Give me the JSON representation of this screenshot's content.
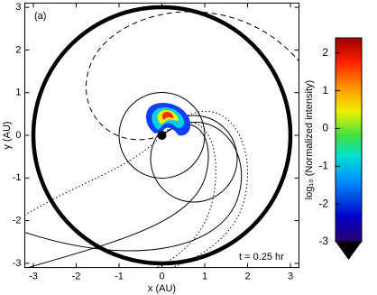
{
  "chart_data": {
    "type": "image",
    "annotations": [
      "(a)",
      "t = 0.25 hr"
    ],
    "x_label": "x (AU)",
    "y_label": "y (AU)",
    "xlim": [
      -3.2,
      3.2
    ],
    "xticks": [
      -3,
      -2,
      -1,
      0,
      1,
      2,
      3
    ],
    "ylim": [
      -3.1,
      3.1
    ],
    "yticks": [
      -3,
      -2,
      -1,
      0,
      1,
      2,
      3
    ],
    "colorbar": {
      "label": "log₁₀ (Normalized intensity)",
      "lim": [
        -3,
        2.4
      ],
      "ticks": [
        -3,
        -2,
        -1,
        0,
        1,
        2
      ]
    }
  }
}
